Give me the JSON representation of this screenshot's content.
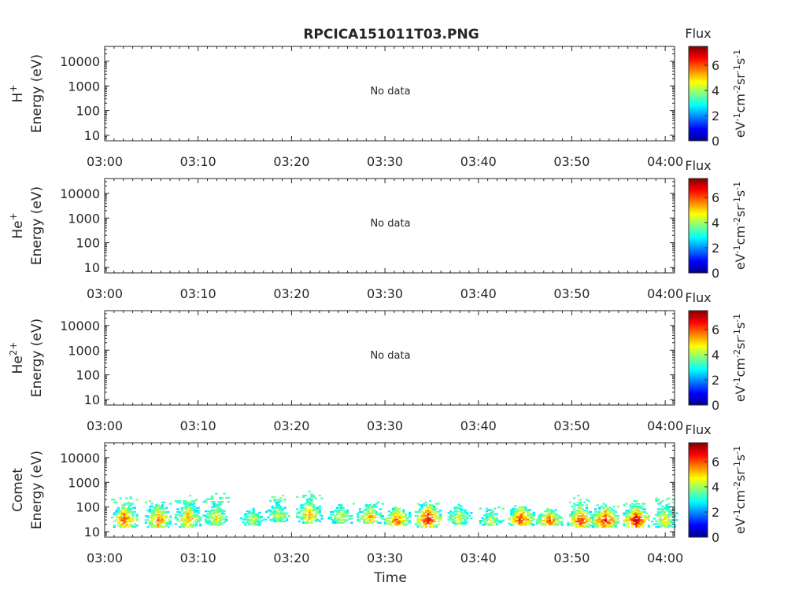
{
  "figure": {
    "title": "RPCICA151011T03.PNG",
    "xlabel": "Time",
    "no_data_text": "No data",
    "colorbar": {
      "label": "Flux",
      "unit_base": [
        "eV",
        "cm",
        "sr",
        "s"
      ],
      "unit_exp": [
        "-1",
        "-2",
        "-1",
        "-1"
      ],
      "ticks": [
        0,
        2,
        4,
        6
      ],
      "range": [
        0,
        7.5
      ],
      "colormap": [
        "#00008f",
        "#0000ff",
        "#0080ff",
        "#00ffff",
        "#80ff80",
        "#ffff00",
        "#ff8000",
        "#ff0000",
        "#800000"
      ]
    }
  },
  "chart_data": [
    {
      "type": "heatmap",
      "species_base": "H",
      "species_sup": "+",
      "ylabel": "Energy (eV)",
      "has_data": false,
      "x_ticks": [
        "03:00",
        "03:10",
        "03:20",
        "03:30",
        "03:40",
        "03:50",
        "04:00"
      ],
      "x_range_min": [
        0,
        61
      ],
      "y_ticks": [
        10,
        100,
        1000,
        10000
      ],
      "y_range": [
        6,
        40000
      ],
      "y_scale": "log"
    },
    {
      "type": "heatmap",
      "species_base": "He",
      "species_sup": "+",
      "ylabel": "Energy (eV)",
      "has_data": false,
      "x_ticks": [
        "03:00",
        "03:10",
        "03:20",
        "03:30",
        "03:40",
        "03:50",
        "04:00"
      ],
      "x_range_min": [
        0,
        61
      ],
      "y_ticks": [
        10,
        100,
        1000,
        10000
      ],
      "y_range": [
        6,
        40000
      ],
      "y_scale": "log"
    },
    {
      "type": "heatmap",
      "species_base": "He",
      "species_sup": "2+",
      "ylabel": "Energy (eV)",
      "has_data": false,
      "x_ticks": [
        "03:00",
        "03:10",
        "03:20",
        "03:30",
        "03:40",
        "03:50",
        "04:00"
      ],
      "x_range_min": [
        0,
        61
      ],
      "y_ticks": [
        10,
        100,
        1000,
        10000
      ],
      "y_range": [
        6,
        40000
      ],
      "y_scale": "log"
    },
    {
      "type": "heatmap",
      "species_base": "Comet",
      "species_sup": "",
      "ylabel": "Energy (eV)",
      "has_data": true,
      "x_ticks": [
        "03:00",
        "03:10",
        "03:20",
        "03:30",
        "03:40",
        "03:50",
        "04:00"
      ],
      "x_range_min": [
        0,
        61
      ],
      "y_ticks": [
        10,
        100,
        1000,
        10000
      ],
      "y_range": [
        6,
        40000
      ],
      "y_scale": "log",
      "bursts": [
        {
          "t": 2.0,
          "e_lo": 15,
          "e_hi": 120,
          "e_top": 400,
          "peak": 6.3
        },
        {
          "t": 5.6,
          "e_lo": 15,
          "e_hi": 120,
          "e_top": 180,
          "peak": 6.0
        },
        {
          "t": 8.8,
          "e_lo": 15,
          "e_hi": 140,
          "e_top": 300,
          "peak": 5.6
        },
        {
          "t": 11.8,
          "e_lo": 18,
          "e_hi": 140,
          "e_top": 450,
          "peak": 5.0
        },
        {
          "t": 15.8,
          "e_lo": 18,
          "e_hi": 90,
          "e_top": 90,
          "peak": 4.5
        },
        {
          "t": 18.5,
          "e_lo": 25,
          "e_hi": 150,
          "e_top": 300,
          "peak": 4.6
        },
        {
          "t": 21.8,
          "e_lo": 22,
          "e_hi": 200,
          "e_top": 450,
          "peak": 5.4
        },
        {
          "t": 25.2,
          "e_lo": 22,
          "e_hi": 120,
          "e_top": 150,
          "peak": 4.6
        },
        {
          "t": 28.3,
          "e_lo": 22,
          "e_hi": 120,
          "e_top": 160,
          "peak": 5.6
        },
        {
          "t": 31.2,
          "e_lo": 18,
          "e_hi": 90,
          "e_top": 110,
          "peak": 6.3
        },
        {
          "t": 34.5,
          "e_lo": 15,
          "e_hi": 120,
          "e_top": 180,
          "peak": 7.0
        },
        {
          "t": 37.8,
          "e_lo": 20,
          "e_hi": 120,
          "e_top": 150,
          "peak": 4.8
        },
        {
          "t": 41.2,
          "e_lo": 18,
          "e_hi": 80,
          "e_top": 100,
          "peak": 4.6
        },
        {
          "t": 44.5,
          "e_lo": 18,
          "e_hi": 100,
          "e_top": 120,
          "peak": 6.6
        },
        {
          "t": 47.5,
          "e_lo": 18,
          "e_hi": 80,
          "e_top": 90,
          "peak": 6.2
        },
        {
          "t": 50.8,
          "e_lo": 15,
          "e_hi": 90,
          "e_top": 300,
          "peak": 6.6
        },
        {
          "t": 53.5,
          "e_lo": 15,
          "e_hi": 100,
          "e_top": 150,
          "peak": 6.9
        },
        {
          "t": 56.8,
          "e_lo": 15,
          "e_hi": 100,
          "e_top": 200,
          "peak": 7.2
        },
        {
          "t": 59.8,
          "e_lo": 15,
          "e_hi": 120,
          "e_top": 250,
          "peak": 5.0
        }
      ]
    }
  ]
}
